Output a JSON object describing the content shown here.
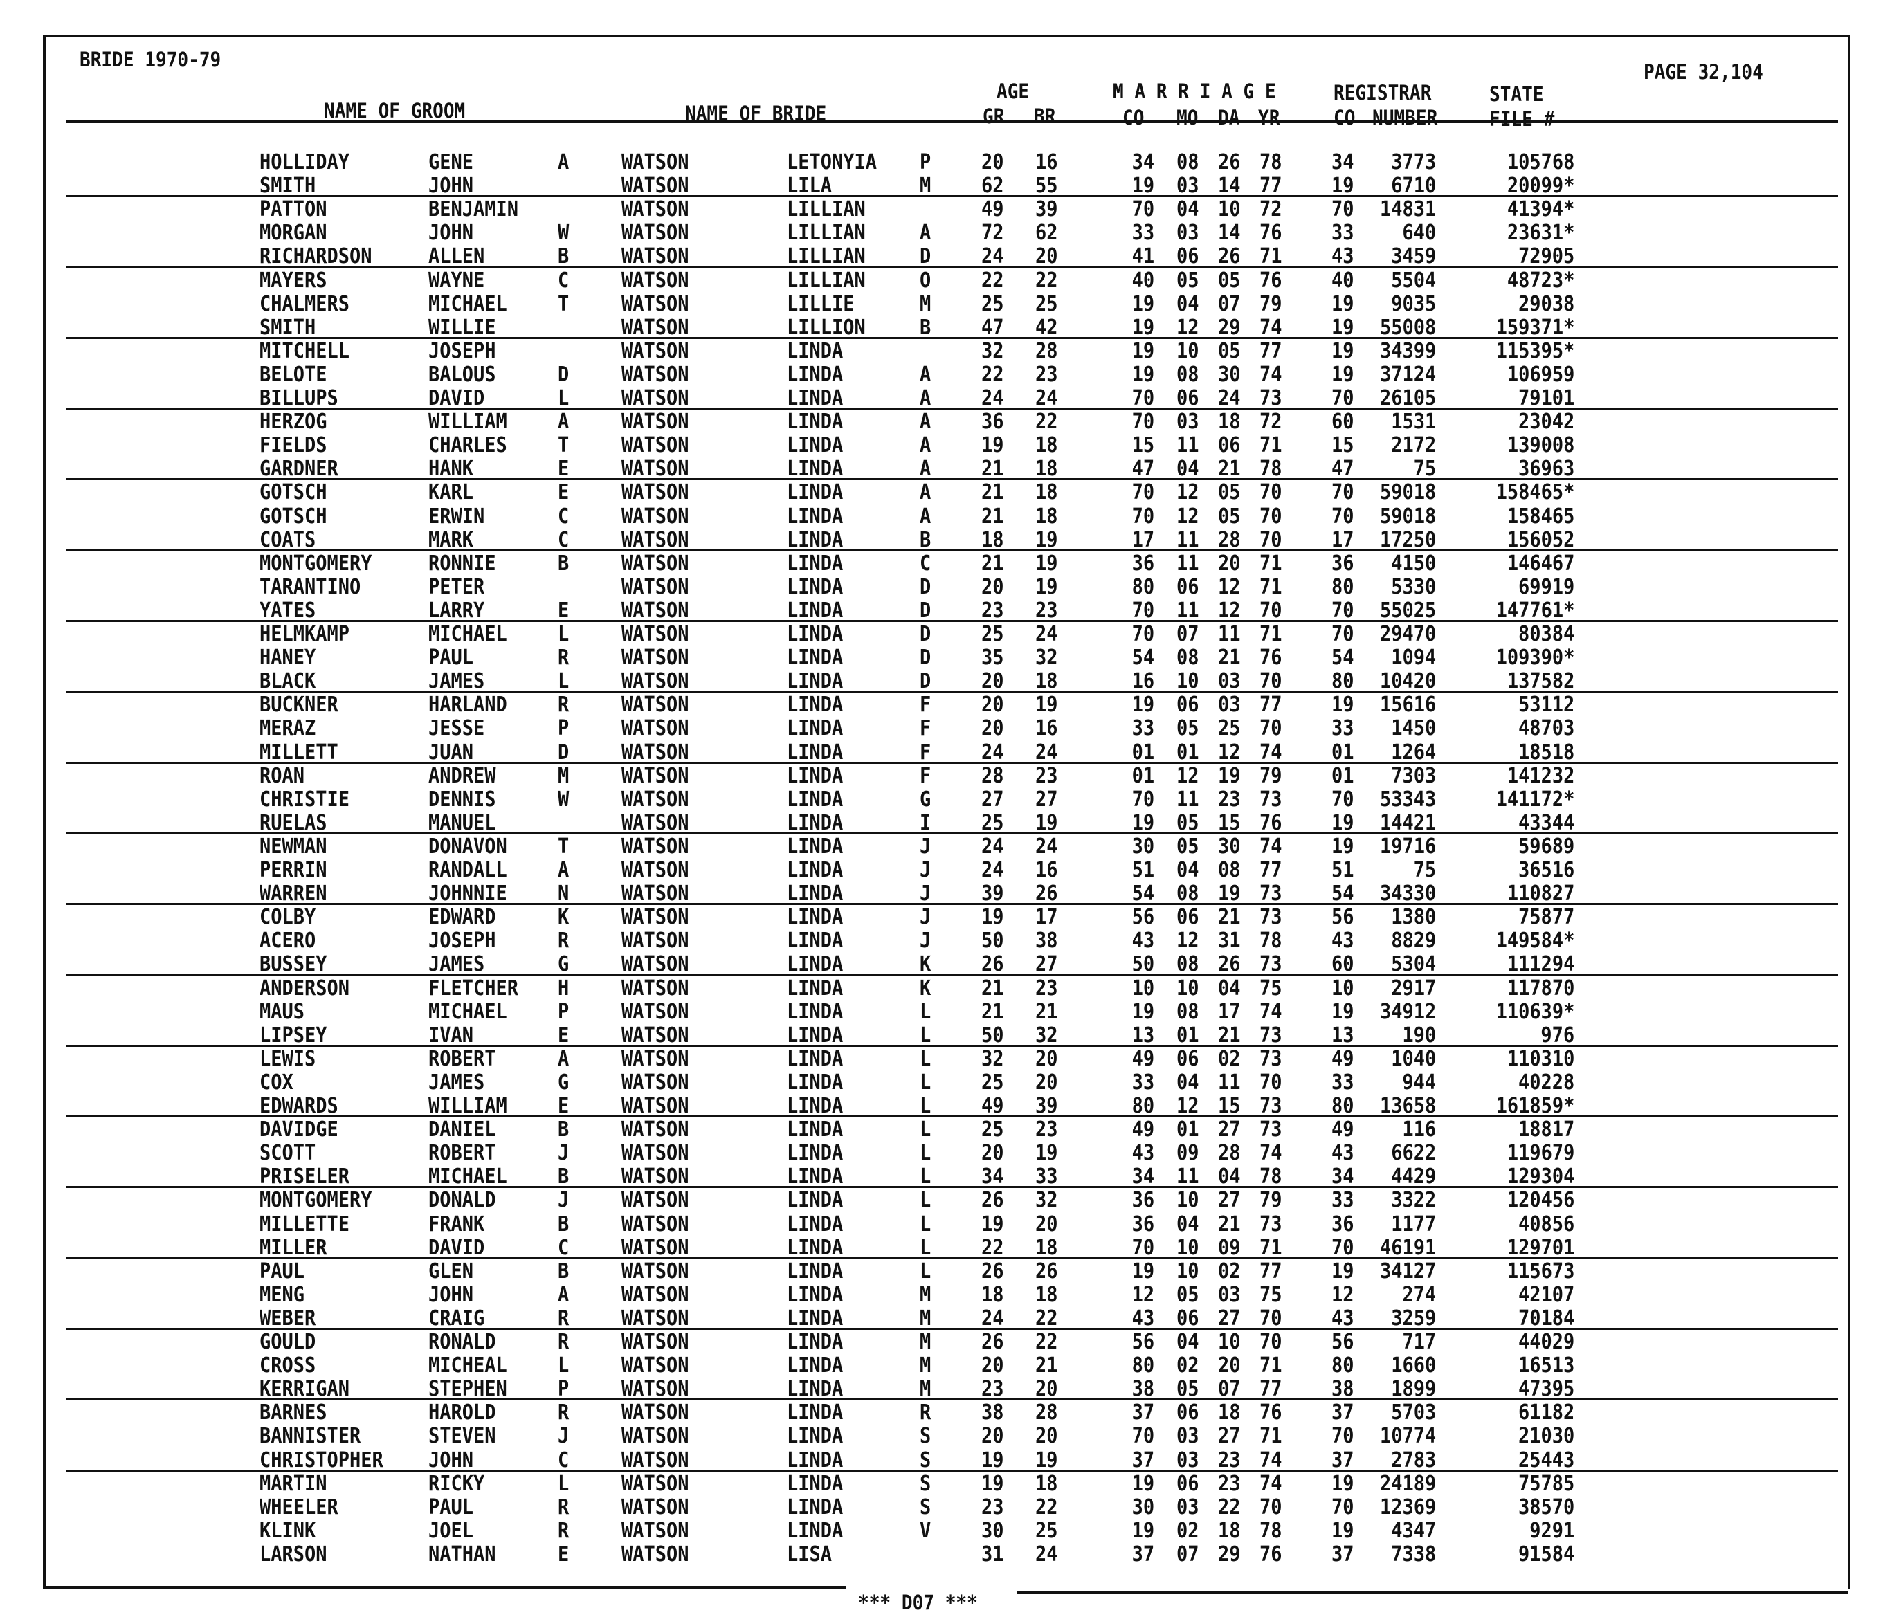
{
  "header": {
    "title": "BRIDE 1970-79",
    "page": "PAGE 32,104",
    "name_of_groom": "NAME OF GROOM",
    "name_of_bride": "NAME OF BRIDE",
    "age": "AGE",
    "gr": "GR",
    "br": "BR",
    "marriage": "M A R R I A G E",
    "co": "CO",
    "mo": "MO",
    "da": "DA",
    "yr": "YR",
    "registrar": "REGISTRAR",
    "reg_co": "CO",
    "number": "NUMBER",
    "state": "STATE",
    "file": "FILE #"
  },
  "footer": "*** D07 ***",
  "rows": [
    [
      "HOLLIDAY",
      "GENE",
      "A",
      "WATSON",
      "LETONYIA",
      "P",
      "20",
      "16",
      "34",
      "08",
      "26",
      "78",
      "34",
      "3773",
      "105768"
    ],
    [
      "SMITH",
      "JOHN",
      "",
      "WATSON",
      "LILA",
      "M",
      "62",
      "55",
      "19",
      "03",
      "14",
      "77",
      "19",
      "6710",
      "20099*"
    ],
    [
      "PATTON",
      "BENJAMIN",
      "",
      "WATSON",
      "LILLIAN",
      "",
      "49",
      "39",
      "70",
      "04",
      "10",
      "72",
      "70",
      "14831",
      "41394*"
    ],
    [
      "MORGAN",
      "JOHN",
      "W",
      "WATSON",
      "LILLIAN",
      "A",
      "72",
      "62",
      "33",
      "03",
      "14",
      "76",
      "33",
      "640",
      "23631*"
    ],
    [
      "RICHARDSON",
      "ALLEN",
      "B",
      "WATSON",
      "LILLIAN",
      "D",
      "24",
      "20",
      "41",
      "06",
      "26",
      "71",
      "43",
      "3459",
      "72905"
    ],
    [
      "MAYERS",
      "WAYNE",
      "C",
      "WATSON",
      "LILLIAN",
      "O",
      "22",
      "22",
      "40",
      "05",
      "05",
      "76",
      "40",
      "5504",
      "48723*"
    ],
    [
      "CHALMERS",
      "MICHAEL",
      "T",
      "WATSON",
      "LILLIE",
      "M",
      "25",
      "25",
      "19",
      "04",
      "07",
      "79",
      "19",
      "9035",
      "29038"
    ],
    [
      "SMITH",
      "WILLIE",
      "",
      "WATSON",
      "LILLION",
      "B",
      "47",
      "42",
      "19",
      "12",
      "29",
      "74",
      "19",
      "55008",
      "159371*"
    ],
    [
      "MITCHELL",
      "JOSEPH",
      "",
      "WATSON",
      "LINDA",
      "",
      "32",
      "28",
      "19",
      "10",
      "05",
      "77",
      "19",
      "34399",
      "115395*"
    ],
    [
      "BELOTE",
      "BALOUS",
      "D",
      "WATSON",
      "LINDA",
      "A",
      "22",
      "23",
      "19",
      "08",
      "30",
      "74",
      "19",
      "37124",
      "106959"
    ],
    [
      "BILLUPS",
      "DAVID",
      "L",
      "WATSON",
      "LINDA",
      "A",
      "24",
      "24",
      "70",
      "06",
      "24",
      "73",
      "70",
      "26105",
      "79101"
    ],
    [
      "HERZOG",
      "WILLIAM",
      "A",
      "WATSON",
      "LINDA",
      "A",
      "36",
      "22",
      "70",
      "03",
      "18",
      "72",
      "60",
      "1531",
      "23042"
    ],
    [
      "FIELDS",
      "CHARLES",
      "T",
      "WATSON",
      "LINDA",
      "A",
      "19",
      "18",
      "15",
      "11",
      "06",
      "71",
      "15",
      "2172",
      "139008"
    ],
    [
      "GARDNER",
      "HANK",
      "E",
      "WATSON",
      "LINDA",
      "A",
      "21",
      "18",
      "47",
      "04",
      "21",
      "78",
      "47",
      "75",
      "36963"
    ],
    [
      "GOTSCH",
      "KARL",
      "E",
      "WATSON",
      "LINDA",
      "A",
      "21",
      "18",
      "70",
      "12",
      "05",
      "70",
      "70",
      "59018",
      "158465*"
    ],
    [
      "GOTSCH",
      "ERWIN",
      "C",
      "WATSON",
      "LINDA",
      "A",
      "21",
      "18",
      "70",
      "12",
      "05",
      "70",
      "70",
      "59018",
      "158465"
    ],
    [
      "COATS",
      "MARK",
      "C",
      "WATSON",
      "LINDA",
      "B",
      "18",
      "19",
      "17",
      "11",
      "28",
      "70",
      "17",
      "17250",
      "156052"
    ],
    [
      "MONTGOMERY",
      "RONNIE",
      "B",
      "WATSON",
      "LINDA",
      "C",
      "21",
      "19",
      "36",
      "11",
      "20",
      "71",
      "36",
      "4150",
      "146467"
    ],
    [
      "TARANTINO",
      "PETER",
      "",
      "WATSON",
      "LINDA",
      "D",
      "20",
      "19",
      "80",
      "06",
      "12",
      "71",
      "80",
      "5330",
      "69919"
    ],
    [
      "YATES",
      "LARRY",
      "E",
      "WATSON",
      "LINDA",
      "D",
      "23",
      "23",
      "70",
      "11",
      "12",
      "70",
      "70",
      "55025",
      "147761*"
    ],
    [
      "HELMKAMP",
      "MICHAEL",
      "L",
      "WATSON",
      "LINDA",
      "D",
      "25",
      "24",
      "70",
      "07",
      "11",
      "71",
      "70",
      "29470",
      "80384"
    ],
    [
      "HANEY",
      "PAUL",
      "R",
      "WATSON",
      "LINDA",
      "D",
      "35",
      "32",
      "54",
      "08",
      "21",
      "76",
      "54",
      "1094",
      "109390*"
    ],
    [
      "BLACK",
      "JAMES",
      "L",
      "WATSON",
      "LINDA",
      "D",
      "20",
      "18",
      "16",
      "10",
      "03",
      "70",
      "80",
      "10420",
      "137582"
    ],
    [
      "BUCKNER",
      "HARLAND",
      "R",
      "WATSON",
      "LINDA",
      "F",
      "20",
      "19",
      "19",
      "06",
      "03",
      "77",
      "19",
      "15616",
      "53112"
    ],
    [
      "MERAZ",
      "JESSE",
      "P",
      "WATSON",
      "LINDA",
      "F",
      "20",
      "16",
      "33",
      "05",
      "25",
      "70",
      "33",
      "1450",
      "48703"
    ],
    [
      "MILLETT",
      "JUAN",
      "D",
      "WATSON",
      "LINDA",
      "F",
      "24",
      "24",
      "01",
      "01",
      "12",
      "74",
      "01",
      "1264",
      "18518"
    ],
    [
      "ROAN",
      "ANDREW",
      "M",
      "WATSON",
      "LINDA",
      "F",
      "28",
      "23",
      "01",
      "12",
      "19",
      "79",
      "01",
      "7303",
      "141232"
    ],
    [
      "CHRISTIE",
      "DENNIS",
      "W",
      "WATSON",
      "LINDA",
      "G",
      "27",
      "27",
      "70",
      "11",
      "23",
      "73",
      "70",
      "53343",
      "141172*"
    ],
    [
      "RUELAS",
      "MANUEL",
      "",
      "WATSON",
      "LINDA",
      "I",
      "25",
      "19",
      "19",
      "05",
      "15",
      "76",
      "19",
      "14421",
      "43344"
    ],
    [
      "NEWMAN",
      "DONAVON",
      "T",
      "WATSON",
      "LINDA",
      "J",
      "24",
      "24",
      "30",
      "05",
      "30",
      "74",
      "19",
      "19716",
      "59689"
    ],
    [
      "PERRIN",
      "RANDALL",
      "A",
      "WATSON",
      "LINDA",
      "J",
      "24",
      "16",
      "51",
      "04",
      "08",
      "77",
      "51",
      "75",
      "36516"
    ],
    [
      "WARREN",
      "JOHNNIE",
      "N",
      "WATSON",
      "LINDA",
      "J",
      "39",
      "26",
      "54",
      "08",
      "19",
      "73",
      "54",
      "34330",
      "110827"
    ],
    [
      "COLBY",
      "EDWARD",
      "K",
      "WATSON",
      "LINDA",
      "J",
      "19",
      "17",
      "56",
      "06",
      "21",
      "73",
      "56",
      "1380",
      "75877"
    ],
    [
      "ACERO",
      "JOSEPH",
      "R",
      "WATSON",
      "LINDA",
      "J",
      "50",
      "38",
      "43",
      "12",
      "31",
      "78",
      "43",
      "8829",
      "149584*"
    ],
    [
      "BUSSEY",
      "JAMES",
      "G",
      "WATSON",
      "LINDA",
      "K",
      "26",
      "27",
      "50",
      "08",
      "26",
      "73",
      "60",
      "5304",
      "111294"
    ],
    [
      "ANDERSON",
      "FLETCHER",
      "H",
      "WATSON",
      "LINDA",
      "K",
      "21",
      "23",
      "10",
      "10",
      "04",
      "75",
      "10",
      "2917",
      "117870"
    ],
    [
      "MAUS",
      "MICHAEL",
      "P",
      "WATSON",
      "LINDA",
      "L",
      "21",
      "21",
      "19",
      "08",
      "17",
      "74",
      "19",
      "34912",
      "110639*"
    ],
    [
      "LIPSEY",
      "IVAN",
      "E",
      "WATSON",
      "LINDA",
      "L",
      "50",
      "32",
      "13",
      "01",
      "21",
      "73",
      "13",
      "190",
      "976"
    ],
    [
      "LEWIS",
      "ROBERT",
      "A",
      "WATSON",
      "LINDA",
      "L",
      "32",
      "20",
      "49",
      "06",
      "02",
      "73",
      "49",
      "1040",
      "110310"
    ],
    [
      "COX",
      "JAMES",
      "G",
      "WATSON",
      "LINDA",
      "L",
      "25",
      "20",
      "33",
      "04",
      "11",
      "70",
      "33",
      "944",
      "40228"
    ],
    [
      "EDWARDS",
      "WILLIAM",
      "E",
      "WATSON",
      "LINDA",
      "L",
      "49",
      "39",
      "80",
      "12",
      "15",
      "73",
      "80",
      "13658",
      "161859*"
    ],
    [
      "DAVIDGE",
      "DANIEL",
      "B",
      "WATSON",
      "LINDA",
      "L",
      "25",
      "23",
      "49",
      "01",
      "27",
      "73",
      "49",
      "116",
      "18817"
    ],
    [
      "SCOTT",
      "ROBERT",
      "J",
      "WATSON",
      "LINDA",
      "L",
      "20",
      "19",
      "43",
      "09",
      "28",
      "74",
      "43",
      "6622",
      "119679"
    ],
    [
      "PRISELER",
      "MICHAEL",
      "B",
      "WATSON",
      "LINDA",
      "L",
      "34",
      "33",
      "34",
      "11",
      "04",
      "78",
      "34",
      "4429",
      "129304"
    ],
    [
      "MONTGOMERY",
      "DONALD",
      "J",
      "WATSON",
      "LINDA",
      "L",
      "26",
      "32",
      "36",
      "10",
      "27",
      "79",
      "33",
      "3322",
      "120456"
    ],
    [
      "MILLETTE",
      "FRANK",
      "B",
      "WATSON",
      "LINDA",
      "L",
      "19",
      "20",
      "36",
      "04",
      "21",
      "73",
      "36",
      "1177",
      "40856"
    ],
    [
      "MILLER",
      "DAVID",
      "C",
      "WATSON",
      "LINDA",
      "L",
      "22",
      "18",
      "70",
      "10",
      "09",
      "71",
      "70",
      "46191",
      "129701"
    ],
    [
      "PAUL",
      "GLEN",
      "B",
      "WATSON",
      "LINDA",
      "L",
      "26",
      "26",
      "19",
      "10",
      "02",
      "77",
      "19",
      "34127",
      "115673"
    ],
    [
      "MENG",
      "JOHN",
      "A",
      "WATSON",
      "LINDA",
      "M",
      "18",
      "18",
      "12",
      "05",
      "03",
      "75",
      "12",
      "274",
      "42107"
    ],
    [
      "WEBER",
      "CRAIG",
      "R",
      "WATSON",
      "LINDA",
      "M",
      "24",
      "22",
      "43",
      "06",
      "27",
      "70",
      "43",
      "3259",
      "70184"
    ],
    [
      "GOULD",
      "RONALD",
      "R",
      "WATSON",
      "LINDA",
      "M",
      "26",
      "22",
      "56",
      "04",
      "10",
      "70",
      "56",
      "717",
      "44029"
    ],
    [
      "CROSS",
      "MICHEAL",
      "L",
      "WATSON",
      "LINDA",
      "M",
      "20",
      "21",
      "80",
      "02",
      "20",
      "71",
      "80",
      "1660",
      "16513"
    ],
    [
      "KERRIGAN",
      "STEPHEN",
      "P",
      "WATSON",
      "LINDA",
      "M",
      "23",
      "20",
      "38",
      "05",
      "07",
      "77",
      "38",
      "1899",
      "47395"
    ],
    [
      "BARNES",
      "HAROLD",
      "R",
      "WATSON",
      "LINDA",
      "R",
      "38",
      "28",
      "37",
      "06",
      "18",
      "76",
      "37",
      "5703",
      "61182"
    ],
    [
      "BANNISTER",
      "STEVEN",
      "J",
      "WATSON",
      "LINDA",
      "S",
      "20",
      "20",
      "70",
      "03",
      "27",
      "71",
      "70",
      "10774",
      "21030"
    ],
    [
      "CHRISTOPHER",
      "JOHN",
      "C",
      "WATSON",
      "LINDA",
      "S",
      "19",
      "19",
      "37",
      "03",
      "23",
      "74",
      "37",
      "2783",
      "25443"
    ],
    [
      "MARTIN",
      "RICKY",
      "L",
      "WATSON",
      "LINDA",
      "S",
      "19",
      "18",
      "19",
      "06",
      "23",
      "74",
      "19",
      "24189",
      "75785"
    ],
    [
      "WHEELER",
      "PAUL",
      "R",
      "WATSON",
      "LINDA",
      "S",
      "23",
      "22",
      "30",
      "03",
      "22",
      "70",
      "70",
      "12369",
      "38570"
    ],
    [
      "KLINK",
      "JOEL",
      "R",
      "WATSON",
      "LINDA",
      "V",
      "30",
      "25",
      "19",
      "02",
      "18",
      "78",
      "19",
      "4347",
      "9291"
    ],
    [
      "LARSON",
      "NATHAN",
      "E",
      "WATSON",
      "LISA",
      "",
      "31",
      "24",
      "37",
      "07",
      "29",
      "76",
      "37",
      "7338",
      "91584"
    ]
  ]
}
